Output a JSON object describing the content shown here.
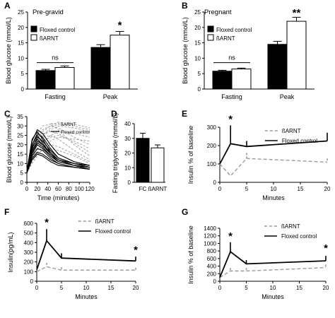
{
  "chart_data": [
    {
      "id": "A",
      "type": "bar",
      "panel_label": "A",
      "title": "Pre-gravid",
      "ylabel": "Blood glucose (mmol/L)",
      "ylim": [
        0,
        25
      ],
      "yticks": [
        0,
        5,
        10,
        15,
        20,
        25
      ],
      "categories": [
        "Fasting",
        "Peak"
      ],
      "series": [
        {
          "name": "Floxed control",
          "color": "#000000",
          "values": [
            6.0,
            13.5
          ],
          "errors": [
            0.4,
            0.9
          ]
        },
        {
          "name": "ßARNT",
          "color": "#ffffff",
          "values": [
            7.0,
            17.5
          ],
          "errors": [
            0.5,
            1.2
          ]
        }
      ],
      "annotations": [
        {
          "text": "ns",
          "category": 0,
          "y": 9.5
        },
        {
          "text": "*",
          "category": 1,
          "y": 20.5
        }
      ],
      "legend": "top-left"
    },
    {
      "id": "B",
      "type": "bar",
      "panel_label": "B",
      "title": "Pregnant",
      "ylabel": "Blood glucose (mmol/L)",
      "ylim": [
        0,
        25
      ],
      "yticks": [
        0,
        5,
        10,
        15,
        20,
        25
      ],
      "categories": [
        "Fasting",
        "Peak"
      ],
      "series": [
        {
          "name": "Floxed control",
          "color": "#000000",
          "values": [
            5.8,
            14.5
          ],
          "errors": [
            0.3,
            1.0
          ]
        },
        {
          "name": "ßARNT",
          "color": "#ffffff",
          "values": [
            6.5,
            22.0
          ],
          "errors": [
            0.3,
            1.3
          ]
        }
      ],
      "annotations": [
        {
          "text": "ns",
          "category": 0,
          "y": 9.5
        },
        {
          "text": "**",
          "category": 1,
          "y": 24.5
        }
      ],
      "legend": "top-left"
    },
    {
      "id": "C",
      "type": "line",
      "panel_label": "C",
      "xlabel": "Time (minutes)",
      "ylabel": "Blood glucose (mmol/L)",
      "xlim": [
        0,
        120
      ],
      "ylim": [
        0,
        35
      ],
      "xticks": [
        0,
        20,
        40,
        60,
        80,
        100,
        120
      ],
      "yticks": [
        0,
        5,
        10,
        15,
        20,
        25,
        30,
        35
      ],
      "x": [
        0,
        10,
        20,
        30,
        45,
        60,
        90,
        120
      ],
      "series": [
        {
          "name": "ßARNT",
          "dashed": true,
          "color": "#9a9a9a",
          "curves": [
            [
              6,
              15,
              20,
              24,
              28,
              30,
              29,
              27
            ],
            [
              5,
              14,
              20,
              25,
              29,
              31,
              30,
              28
            ],
            [
              6,
              16,
              23,
              27,
              30,
              32,
              31,
              29
            ],
            [
              7,
              17,
              24,
              28,
              30,
              29,
              24,
              20
            ],
            [
              5,
              12,
              17,
              21,
              25,
              27,
              26,
              24
            ],
            [
              6,
              13,
              18,
              22,
              24,
              25,
              22,
              18
            ],
            [
              7,
              18,
              26,
              30,
              31,
              28,
              20,
              14
            ],
            [
              5,
              10,
              14,
              18,
              22,
              24,
              23,
              22
            ],
            [
              6,
              15,
              21,
              24,
              25,
              23,
              17,
              12
            ],
            [
              6,
              12,
              16,
              19,
              20,
              19,
              15,
              11
            ],
            [
              5,
              11,
              15,
              17,
              18,
              17,
              14,
              10
            ],
            [
              7,
              16,
              22,
              26,
              27,
              26,
              21,
              16
            ]
          ]
        },
        {
          "name": "Floxed control",
          "dashed": false,
          "color": "#000000",
          "curves": [
            [
              6,
              22,
              28,
              26,
              20,
              15,
              11,
              9
            ],
            [
              5,
              20,
              26,
              24,
              18,
              13,
              10,
              8
            ],
            [
              6,
              23,
              27,
              23,
              16,
              12,
              9,
              8
            ],
            [
              5,
              18,
              24,
              22,
              17,
              13,
              10,
              9
            ],
            [
              6,
              17,
              22,
              20,
              15,
              12,
              9,
              8
            ],
            [
              5,
              15,
              20,
              18,
              14,
              11,
              9,
              7
            ],
            [
              6,
              14,
              18,
              17,
              13,
              10,
              8,
              7
            ],
            [
              6,
              20,
              25,
              21,
              15,
              11,
              9,
              7
            ],
            [
              5,
              13,
              16,
              15,
              12,
              10,
              8,
              7
            ],
            [
              6,
              19,
              23,
              20,
              16,
              12,
              10,
              9
            ],
            [
              5,
              12,
              15,
              14,
              11,
              9,
              8,
              7
            ],
            [
              6,
              16,
              21,
              19,
              14,
              11,
              9,
              8
            ]
          ]
        }
      ],
      "legend": "top-right"
    },
    {
      "id": "D",
      "type": "bar",
      "panel_label": "D",
      "ylabel": "Fasting triglyceride (mmol/L)",
      "ylim": [
        0,
        40
      ],
      "yticks": [
        0,
        10,
        20,
        30,
        40
      ],
      "categories": [
        "FC",
        "ßARNT"
      ],
      "values": [
        30,
        23.5
      ],
      "errors": [
        3.5,
        2.0
      ],
      "colors": [
        "#000000",
        "#ffffff"
      ]
    },
    {
      "id": "E",
      "type": "line",
      "panel_label": "E",
      "xlabel": "Minutes",
      "ylabel": "Insulin % of baseline",
      "xlim": [
        0,
        20
      ],
      "ylim": [
        0,
        300
      ],
      "xticks": [
        0,
        5,
        10,
        15,
        20
      ],
      "yticks": [
        0,
        100,
        200,
        300
      ],
      "series": [
        {
          "name": "ßARNT",
          "dashed": true,
          "color": "#9a9a9a",
          "x": [
            0,
            2,
            5,
            20
          ],
          "values": [
            100,
            35,
            130,
            110
          ],
          "errors": [
            0,
            0,
            30,
            20
          ]
        },
        {
          "name": "Floxed control",
          "dashed": false,
          "color": "#000000",
          "x": [
            0,
            2,
            5,
            20
          ],
          "values": [
            100,
            210,
            195,
            225
          ],
          "errors": [
            0,
            100,
            30,
            45
          ]
        }
      ],
      "annotations": [
        {
          "text": "*",
          "x": 2,
          "y": 325
        }
      ],
      "legend": "top-right"
    },
    {
      "id": "F",
      "type": "line",
      "panel_label": "F",
      "xlabel": "Minutes",
      "ylabel": "Insulin(pg/mL)",
      "xlim": [
        0,
        20
      ],
      "ylim": [
        0,
        600
      ],
      "xticks": [
        0,
        5,
        10,
        15,
        20
      ],
      "yticks": [
        0,
        100,
        200,
        300,
        400,
        500,
        600
      ],
      "series": [
        {
          "name": "ßARNT",
          "dashed": true,
          "color": "#9a9a9a",
          "x": [
            0,
            2,
            5,
            20
          ],
          "values": [
            100,
            150,
            115,
            115
          ],
          "errors": [
            0,
            40,
            30,
            25
          ]
        },
        {
          "name": "Floxed control",
          "dashed": false,
          "color": "#000000",
          "x": [
            0,
            2,
            5,
            20
          ],
          "values": [
            120,
            420,
            240,
            210
          ],
          "errors": [
            0,
            120,
            50,
            45
          ]
        }
      ],
      "annotations": [
        {
          "text": "*",
          "x": 2,
          "y": 575
        },
        {
          "text": "*",
          "x": 20,
          "y": 290
        }
      ],
      "legend": "top-right"
    },
    {
      "id": "G",
      "type": "line",
      "panel_label": "G",
      "xlabel": "Minutes",
      "ylabel": "Insulin % of baseline",
      "xlim": [
        0,
        20
      ],
      "ylim": [
        0,
        1400
      ],
      "xticks": [
        0,
        5,
        10,
        15,
        20
      ],
      "yticks": [
        0,
        200,
        400,
        600,
        800,
        1000,
        1200,
        1400
      ],
      "series": [
        {
          "name": "ßARNT",
          "dashed": true,
          "color": "#9a9a9a",
          "x": [
            0,
            2,
            5,
            20
          ],
          "values": [
            100,
            270,
            270,
            360
          ],
          "errors": [
            0,
            80,
            80,
            80
          ]
        },
        {
          "name": "Floxed control",
          "dashed": false,
          "color": "#000000",
          "x": [
            0,
            2,
            5,
            20
          ],
          "values": [
            100,
            780,
            460,
            540
          ],
          "errors": [
            0,
            250,
            100,
            130
          ]
        }
      ],
      "annotations": [
        {
          "text": "*",
          "x": 2,
          "y": 1100
        },
        {
          "text": "*",
          "x": 20,
          "y": 780
        }
      ],
      "legend": "top-right"
    }
  ]
}
